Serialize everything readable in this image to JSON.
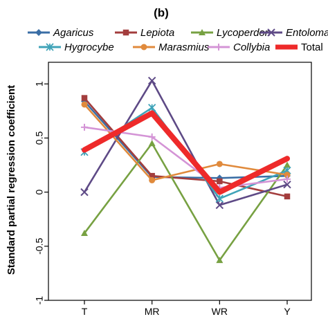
{
  "chart_data": {
    "type": "line",
    "title": "(b)",
    "xlabel": "",
    "ylabel": "Standard partial regression coefficient",
    "categories": [
      "T",
      "MR",
      "WR",
      "Y"
    ],
    "ylim": [
      -1,
      1.2
    ],
    "yticks": [
      -1,
      -0.5,
      0,
      0.5,
      1
    ],
    "ytick_labels": [
      "-1",
      "-0.5",
      "0",
      "0.5",
      "1"
    ],
    "grid": false,
    "legend_position": "top",
    "series": [
      {
        "name": "Agaricus",
        "color": "#3a6ea5",
        "marker": "diamond",
        "values": [
          0.84,
          0.14,
          0.13,
          0.15
        ]
      },
      {
        "name": "Lepiota",
        "color": "#a33d3d",
        "marker": "square",
        "values": [
          0.87,
          0.15,
          0.1,
          -0.04
        ]
      },
      {
        "name": "Lycoperdon",
        "color": "#77a142",
        "marker": "triangle",
        "values": [
          -0.38,
          0.45,
          -0.63,
          0.25
        ]
      },
      {
        "name": "Entoloma",
        "color": "#5e4a86",
        "marker": "x",
        "values": [
          0.0,
          1.03,
          -0.12,
          0.07
        ]
      },
      {
        "name": "Hygrocybe",
        "color": "#3fa3b8",
        "marker": "star",
        "values": [
          0.37,
          0.78,
          -0.06,
          0.2
        ]
      },
      {
        "name": "Marasmius",
        "color": "#e08a3c",
        "marker": "circle",
        "values": [
          0.81,
          0.11,
          0.26,
          0.16
        ]
      },
      {
        "name": "Collybia",
        "color": "#d494d6",
        "marker": "plus",
        "values": [
          0.6,
          0.51,
          0.04,
          0.12
        ]
      },
      {
        "name": "Total",
        "color": "#ee2a2a",
        "marker": "none",
        "values": [
          0.39,
          0.73,
          0.0,
          0.31
        ]
      }
    ]
  }
}
